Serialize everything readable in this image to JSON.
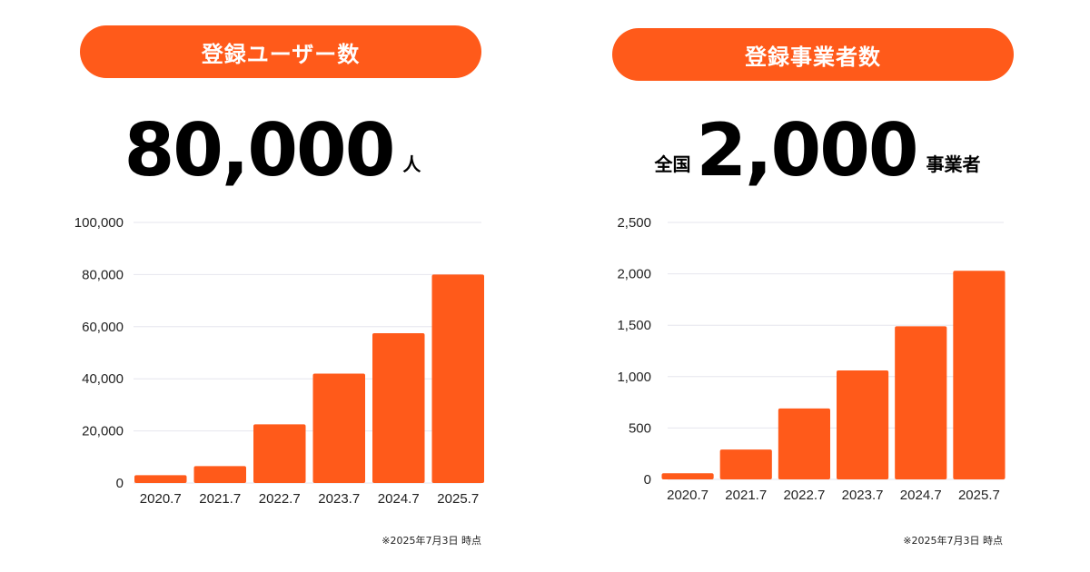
{
  "left": {
    "pill_label": "登録ユーザー数",
    "headline": {
      "number": "80,000",
      "unit": "人"
    },
    "note": "※2025年7月3日 時点"
  },
  "right": {
    "pill_label": "登録事業者数",
    "headline": {
      "prefix": "全国",
      "number": "2,000",
      "unit": "事業者"
    },
    "note": "※2025年7月3日 時点"
  },
  "colors": {
    "accent": "#ff5a1a",
    "grid": "#e6e6ee",
    "text": "#222222"
  },
  "chart_data": [
    {
      "type": "bar",
      "title": "登録ユーザー数",
      "categories": [
        "2020.7",
        "2021.7",
        "2022.7",
        "2023.7",
        "2024.7",
        "2025.7"
      ],
      "values": [
        3000,
        6500,
        22500,
        42000,
        57500,
        80000
      ],
      "ylim": [
        0,
        100000
      ],
      "yticks": [
        "0",
        "20,000",
        "40,000",
        "60,000",
        "80,000",
        "100,000"
      ],
      "ytick_values": [
        0,
        20000,
        40000,
        60000,
        80000,
        100000
      ],
      "grid": true,
      "xlabel": "",
      "ylabel": ""
    },
    {
      "type": "bar",
      "title": "登録事業者数",
      "categories": [
        "2020.7",
        "2021.7",
        "2022.7",
        "2023.7",
        "2024.7",
        "2025.7"
      ],
      "values": [
        60,
        290,
        690,
        1060,
        1490,
        2030
      ],
      "ylim": [
        0,
        2500
      ],
      "yticks": [
        "0",
        "500",
        "1,000",
        "1,500",
        "2,000",
        "2,500"
      ],
      "ytick_values": [
        0,
        500,
        1000,
        1500,
        2000,
        2500
      ],
      "grid": true,
      "xlabel": "",
      "ylabel": ""
    }
  ]
}
